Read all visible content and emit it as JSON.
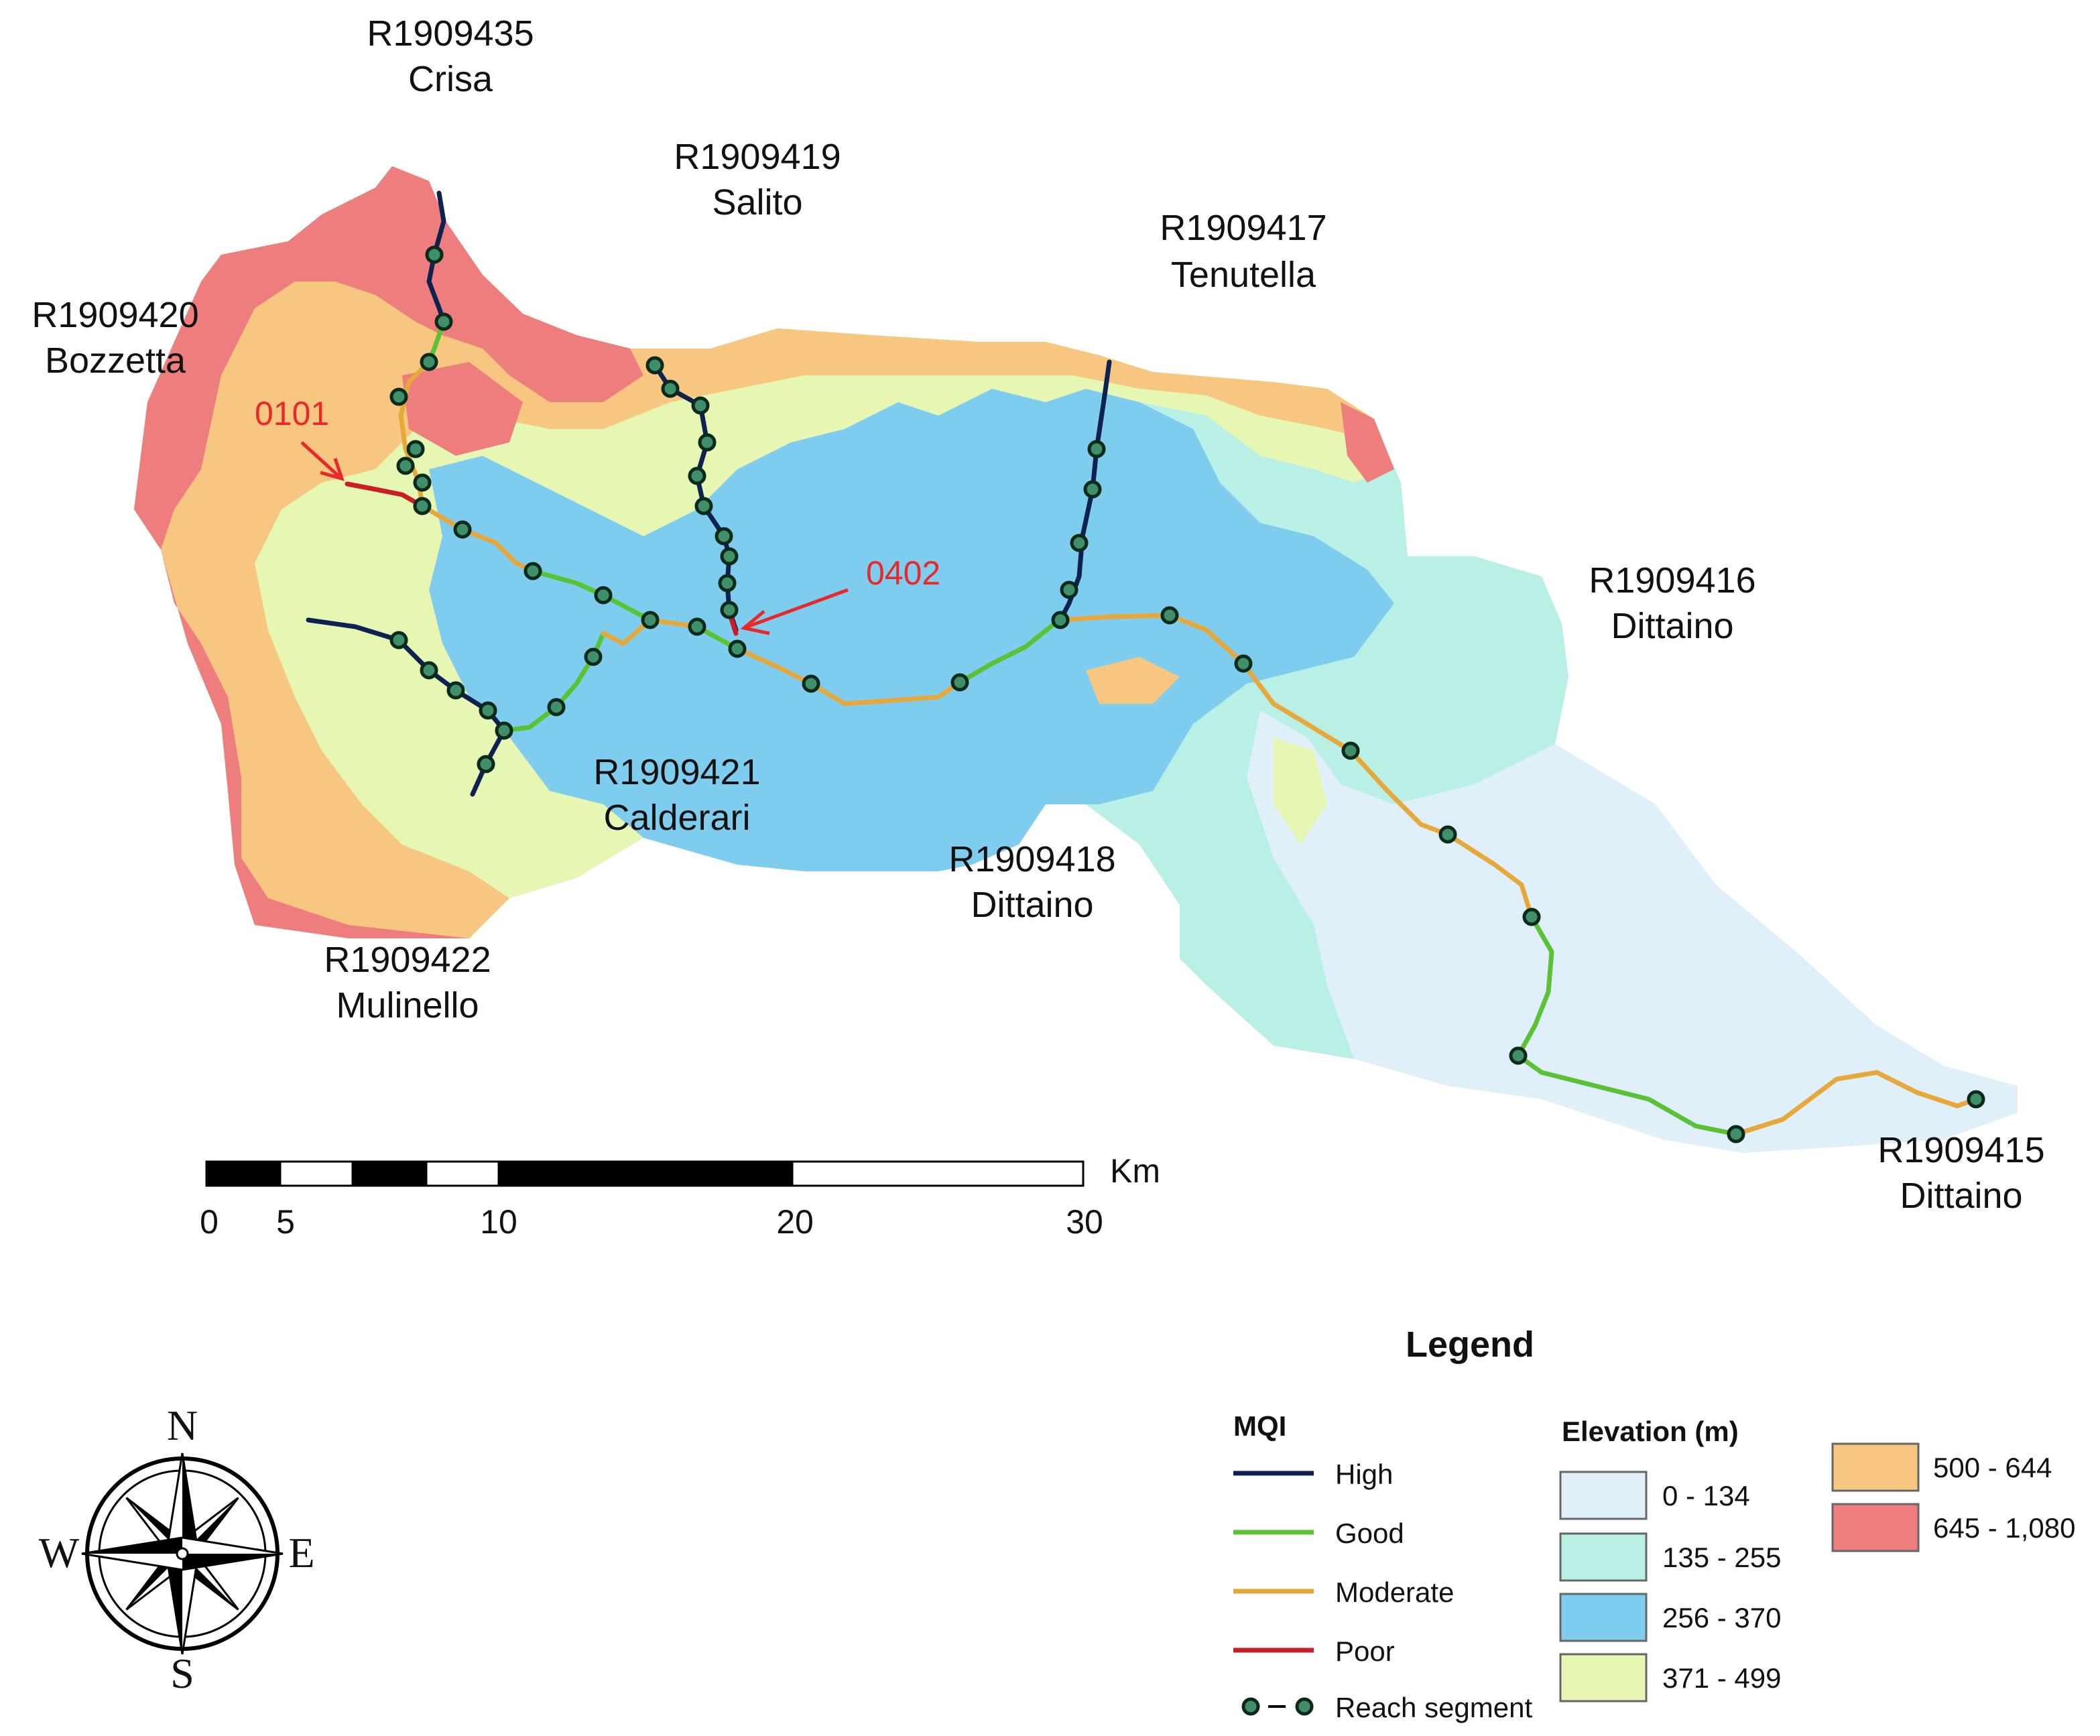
{
  "colors": {
    "elevation": {
      "e0": "#dff0fa",
      "e1": "#b8f0e6",
      "e2": "#7fcdee",
      "e3": "#e6f7b4",
      "e4": "#f7c781",
      "e5": "#ed7e7d"
    },
    "mqi": {
      "high": "#0d2250",
      "good": "#5bc236",
      "moderate": "#e6a83a",
      "poor": "#cc1c24"
    },
    "segment_dot": "#3f8f6a",
    "annotation": "#e8282a"
  },
  "reaches": {
    "crisa": {
      "code": "R1909435",
      "name": "Crisa"
    },
    "salito": {
      "code": "R1909419",
      "name": "Salito"
    },
    "tenutella": {
      "code": "R1909417",
      "name": "Tenutella"
    },
    "bozzetta": {
      "code": "R1909420",
      "name": "Bozzetta"
    },
    "dittaino_416": {
      "code": "R1909416",
      "name": "Dittaino"
    },
    "calderari": {
      "code": "R1909421",
      "name": "Calderari"
    },
    "dittaino_418": {
      "code": "R1909418",
      "name": "Dittaino"
    },
    "mulinello": {
      "code": "R1909422",
      "name": "Mulinello"
    },
    "dittaino_415": {
      "code": "R1909415",
      "name": "Dittaino"
    }
  },
  "annotations": {
    "a0101": "0101",
    "a0402": "0402"
  },
  "scale_bar": {
    "unit": "Km",
    "ticks": [
      "0",
      "5",
      "10",
      "20",
      "30"
    ]
  },
  "compass": {
    "n": "N",
    "s": "S",
    "e": "E",
    "w": "W"
  },
  "legend": {
    "title": "Legend",
    "mqi_title": "MQI",
    "mqi_items": [
      "High",
      "Good",
      "Moderate",
      "Poor"
    ],
    "reach_segment_label": "Reach segment",
    "elevation_title": "Elevation (m)",
    "elevation_items": [
      "0 - 134",
      "135 - 255",
      "256 - 370",
      "371 - 499",
      "500 - 644",
      "645 - 1,080"
    ]
  }
}
